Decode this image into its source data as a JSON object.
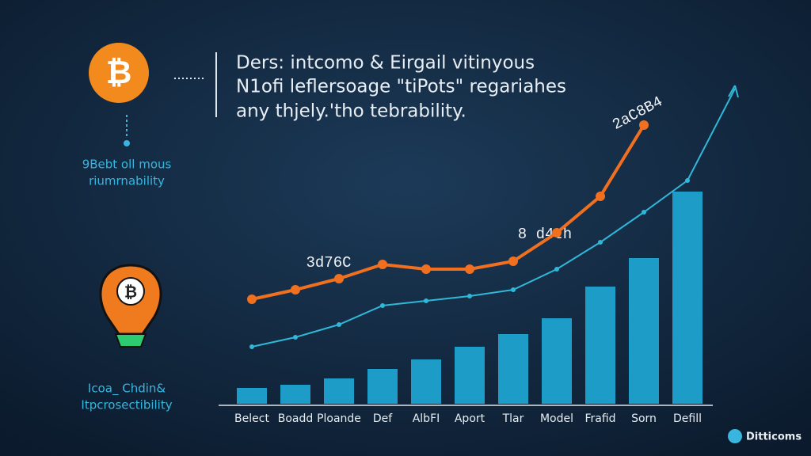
{
  "header": {
    "lines": [
      "Ders: intcomo & Eirgail vitinyous",
      "N1ofi leflersoage \"tiPots\" regariahes",
      "any thjely.'tho tebrability."
    ]
  },
  "side_labels": {
    "top": [
      "9Bebt oll mous",
      "riumrnability"
    ],
    "bottom": [
      "Icoa_ Chdin&",
      "Itpcrosectibility"
    ]
  },
  "brand": "Ditticoms",
  "chart_data": {
    "type": "bar",
    "categories": [
      "Belect",
      "Boadd",
      "Ploande",
      "Def",
      "AlbFI",
      "Aport",
      "Tlar",
      "Model",
      "Frafid",
      "Sorn",
      "Defill"
    ],
    "ylim": [
      0,
      100
    ],
    "annotations": [
      "3d76C",
      "8 d4th",
      "2aC8B4"
    ],
    "series": [
      {
        "type": "bar",
        "color": "#1e9cc8",
        "values": [
          5,
          6,
          8,
          11,
          14,
          18,
          22,
          27,
          37,
          46,
          67
        ]
      },
      {
        "type": "line",
        "color": "#f07020",
        "values": [
          33,
          36,
          39.5,
          44,
          42.5,
          42.5,
          45,
          54,
          65.5,
          88,
          null
        ]
      },
      {
        "type": "line",
        "color": "#2fb8d8",
        "values": [
          18,
          21,
          25,
          31,
          32.5,
          34,
          36,
          42.5,
          51,
          60.5,
          70.5
        ]
      }
    ]
  }
}
